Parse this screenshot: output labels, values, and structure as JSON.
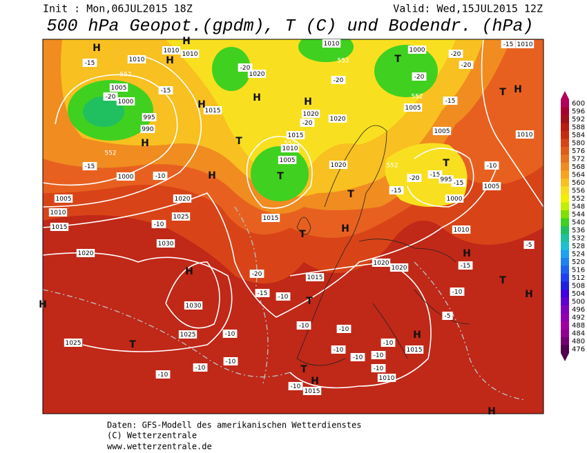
{
  "header": {
    "init": "Init : Mon,06JUL2015  18Z",
    "valid": "Valid: Wed,15JUL2015  12Z",
    "title": "500 hPa Geopot.(gpdm), T (C) und Bodendr. (hPa)"
  },
  "colorbar": {
    "ticks": [
      600,
      596,
      592,
      588,
      584,
      580,
      576,
      572,
      568,
      564,
      560,
      556,
      552,
      548,
      544,
      540,
      536,
      532,
      528,
      524,
      520,
      516,
      512,
      508,
      504,
      500,
      496,
      492,
      488,
      484,
      480,
      476
    ],
    "colors": [
      "#b4005a",
      "#a80030",
      "#a01018",
      "#b81c10",
      "#c82c10",
      "#d84418",
      "#e05c18",
      "#e87420",
      "#f08c20",
      "#f8a420",
      "#f8c020",
      "#f8dc20",
      "#f0f000",
      "#c0f000",
      "#80e000",
      "#40d020",
      "#20c060",
      "#20c0a0",
      "#20c0d0",
      "#20a0f0",
      "#2080f0",
      "#2060f0",
      "#2040f0",
      "#2020e0",
      "#4000e0",
      "#6000d0",
      "#8000c0",
      "#9000b0",
      "#a000a0",
      "#900090",
      "#700070",
      "#500050"
    ]
  },
  "map_labels": [
    "1010",
    "1010",
    "1010",
    "-15",
    "1005",
    "-15",
    "-20",
    "1000",
    "995",
    "990",
    "-15",
    "1000",
    "-10",
    "1005",
    "1010",
    "1015",
    "1020",
    "1025",
    "-10",
    "1030",
    "1020",
    "1030",
    "1025",
    "1025",
    "-10",
    "-10",
    "-10",
    "-10",
    "1015",
    "-20",
    "-15",
    "-10",
    "1015",
    "-10",
    "-10",
    "-10",
    "-10",
    "-10",
    "1015",
    "-10",
    "1010",
    "-10",
    "1015",
    "-10",
    "1020",
    "1020",
    "1020",
    "1020",
    "1020",
    "1015",
    "1010",
    "1005",
    "1020",
    "-20",
    "1010",
    "1000",
    "-20",
    "-20",
    "-20",
    "1005",
    "-15",
    "1005",
    "-20",
    "-15",
    "-15",
    "995",
    "1000",
    "-15",
    "1005",
    "-10",
    "1010",
    "1010",
    "-15",
    "-10",
    "-5",
    "-5",
    "-15",
    "1010",
    "-20",
    "1015",
    "-20",
    "H",
    "H",
    "H",
    "H",
    "H",
    "H",
    "T",
    "H",
    "T",
    "T",
    "H",
    "T",
    "H",
    "T",
    "T",
    "H",
    "T",
    "H",
    "H",
    "T",
    "T",
    "H",
    "T",
    "H",
    "H",
    "T",
    "H",
    "H",
    "552",
    "552",
    "552",
    "552",
    "552",
    "552"
  ],
  "footer": [
    "Daten: GFS-Modell des amerikanischen Wetterdienstes",
    "(C) Wetterzentrale",
    "www.wetterzentrale.de"
  ]
}
